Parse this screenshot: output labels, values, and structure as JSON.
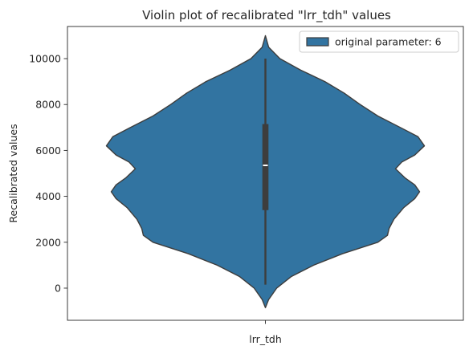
{
  "chart_data": {
    "type": "violin",
    "title": "Violin plot of recalibrated \"lrr_tdh\" values",
    "xlabel": "",
    "ylabel": "Recalibrated values",
    "categories": [
      "lrr_tdh"
    ],
    "ylim": [
      -1400,
      11400
    ],
    "yticks": [
      0,
      2000,
      4000,
      6000,
      8000,
      10000
    ],
    "legend": {
      "position": "top-right",
      "entries": [
        "original parameter: 6"
      ]
    },
    "series": [
      {
        "name": "original parameter: 6",
        "color": "#3274a1",
        "edge_color": "#3d3d3d",
        "density_profile": [
          [
            -850,
            0.0
          ],
          [
            -500,
            0.02
          ],
          [
            0,
            0.07
          ],
          [
            500,
            0.16
          ],
          [
            1000,
            0.3
          ],
          [
            1500,
            0.48
          ],
          [
            2000,
            0.7
          ],
          [
            2300,
            0.76
          ],
          [
            2600,
            0.77
          ],
          [
            3000,
            0.8
          ],
          [
            3500,
            0.86
          ],
          [
            3900,
            0.93
          ],
          [
            4200,
            0.96
          ],
          [
            4500,
            0.93
          ],
          [
            4800,
            0.87
          ],
          [
            5200,
            0.81
          ],
          [
            5500,
            0.85
          ],
          [
            5800,
            0.93
          ],
          [
            6200,
            0.99
          ],
          [
            6600,
            0.95
          ],
          [
            7000,
            0.84
          ],
          [
            7500,
            0.7
          ],
          [
            8000,
            0.59
          ],
          [
            8500,
            0.49
          ],
          [
            9000,
            0.37
          ],
          [
            9500,
            0.22
          ],
          [
            10000,
            0.09
          ],
          [
            10500,
            0.02
          ],
          [
            11000,
            0.0
          ]
        ],
        "whisker_low": 150,
        "q1": 3400,
        "median": 5350,
        "q3": 7150,
        "whisker_high": 10000
      }
    ],
    "grid": false
  }
}
